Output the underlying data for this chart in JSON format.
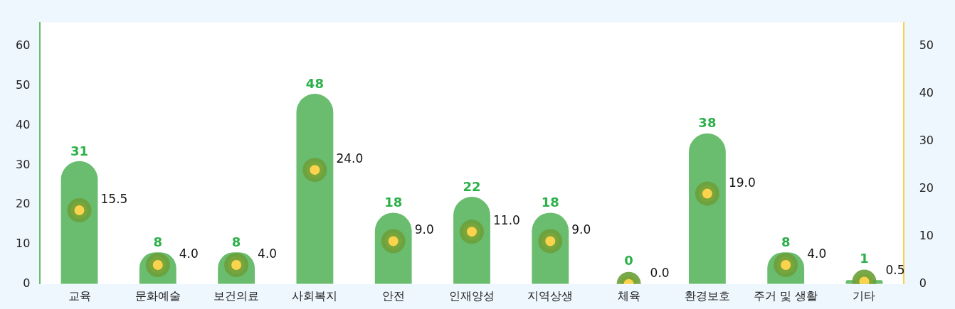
{
  "chart_data": {
    "type": "bar",
    "categories": [
      "교육",
      "문화예술",
      "보건의료",
      "사회복지",
      "안전",
      "인재양성",
      "지역상생",
      "체육",
      "환경보호",
      "주거 및 생활",
      "기타"
    ],
    "series": [
      {
        "color": "#6abd6e",
        "values": [
          31,
          8,
          8,
          48,
          18,
          22,
          18,
          0,
          38,
          8,
          1
        ]
      },
      {
        "type": "scatter",
        "axis": "y2",
        "color": "#fcd34d",
        "values": [
          15.5,
          4,
          4,
          24,
          9,
          11,
          9,
          0,
          19,
          4,
          0.5
        ],
        "value_labels": [
          "15.5",
          "4.0",
          "4.0",
          "24.0",
          "9.0",
          "11.0",
          "9.0",
          "0.0",
          "19.0",
          "4.0",
          "0.5"
        ]
      }
    ],
    "ylim": [
      0,
      66
    ],
    "yticks": [
      0,
      10,
      20,
      30,
      40,
      50,
      60
    ],
    "y2lim": [
      0,
      55
    ],
    "y2ticks": [
      0,
      10,
      20,
      30,
      40,
      50
    ],
    "data_labels": true,
    "grid": false,
    "legend": false,
    "marker": "circle"
  }
}
